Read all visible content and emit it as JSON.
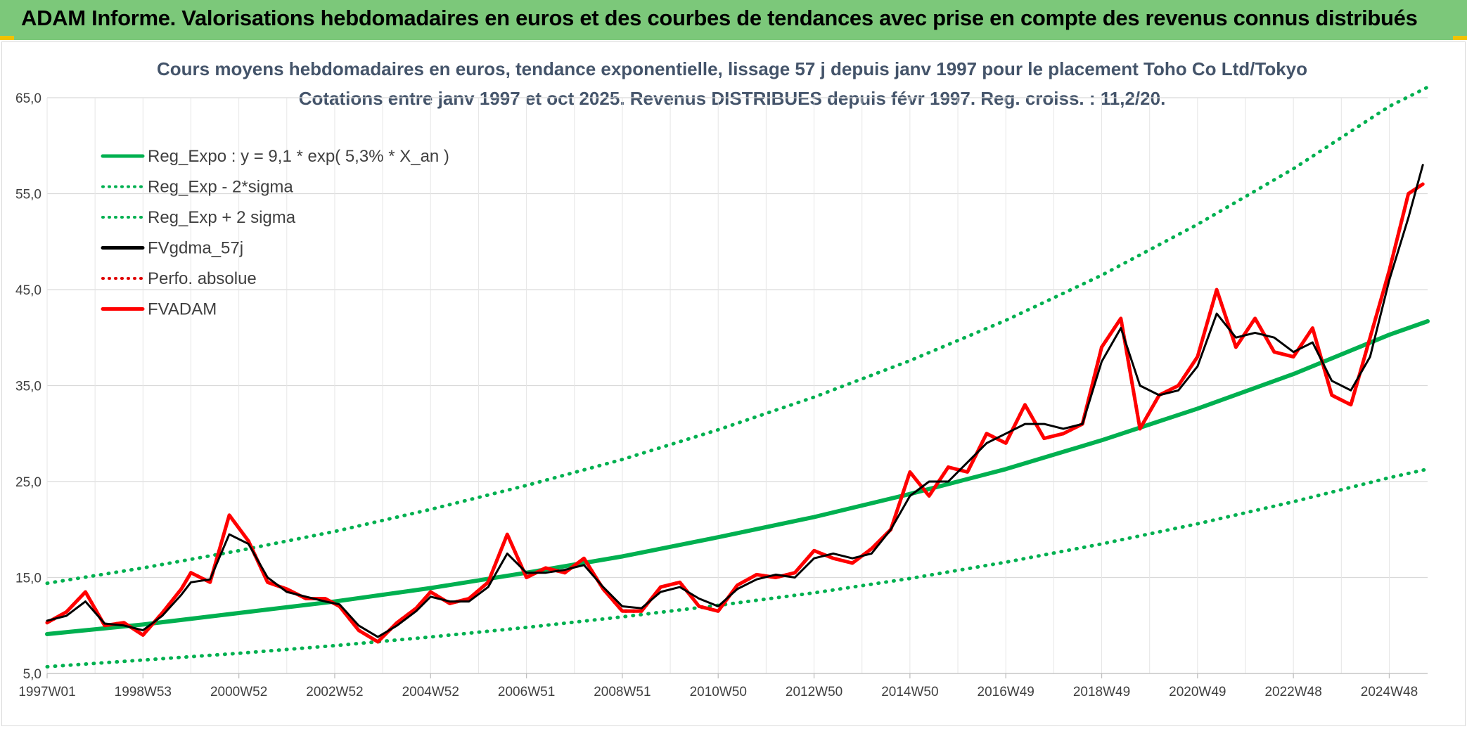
{
  "banner": {
    "title": "ADAM Informe. Valorisations hebdomadaires en euros et des courbes de tendances avec prise en compte des revenus connus distribués",
    "background": "#7cc87a"
  },
  "chart_data": {
    "type": "line",
    "title": "Cours moyens hebdomadaires en euros, tendance exponentielle, lissage 57 j depuis janv 1997 pour le placement Toho Co Ltd/Tokyo",
    "subtitle": "Cotations entre janv 1997 et oct 2025. Revenus DISTRIBUES depuis févr 1997. Reg. croiss. : 11,2/20.",
    "xlabel": "",
    "ylabel": "",
    "ylim": [
      5,
      65
    ],
    "xlim": [
      1997.0,
      2025.8
    ],
    "y_ticks": [
      "5,0",
      "15,0",
      "25,0",
      "35,0",
      "45,0",
      "55,0",
      "65,0"
    ],
    "x_ticks": [
      {
        "label": "1997W01",
        "year": 1997.0
      },
      {
        "label": "1998W53",
        "year": 1999.0
      },
      {
        "label": "2000W52",
        "year": 2001.0
      },
      {
        "label": "2002W52",
        "year": 2003.0
      },
      {
        "label": "2004W52",
        "year": 2005.0
      },
      {
        "label": "2006W51",
        "year": 2007.0
      },
      {
        "label": "2008W51",
        "year": 2009.0
      },
      {
        "label": "2010W50",
        "year": 2011.0
      },
      {
        "label": "2012W50",
        "year": 2013.0
      },
      {
        "label": "2014W50",
        "year": 2015.0
      },
      {
        "label": "2016W49",
        "year": 2017.0
      },
      {
        "label": "2018W49",
        "year": 2019.0
      },
      {
        "label": "2020W49",
        "year": 2021.0
      },
      {
        "label": "2022W48",
        "year": 2023.0
      },
      {
        "label": "2024W48",
        "year": 2025.0
      }
    ],
    "grid": true,
    "legend_position": "top-left",
    "series": [
      {
        "name": "Reg_Expo : y = 9,1 * exp( 5,3% *  X_an )",
        "color": "#00b050",
        "style": "solid",
        "x": [
          1997,
          1999,
          2001,
          2003,
          2005,
          2007,
          2009,
          2011,
          2013,
          2015,
          2017,
          2019,
          2021,
          2023,
          2025,
          2025.8
        ],
        "values": [
          9.1,
          10.1,
          11.3,
          12.5,
          13.9,
          15.5,
          17.2,
          19.2,
          21.3,
          23.7,
          26.3,
          29.3,
          32.6,
          36.2,
          40.3,
          41.7
        ]
      },
      {
        "name": "Reg_Exp - 2*sigma",
        "color": "#00b050",
        "style": "dotted",
        "x": [
          1997,
          1999,
          2001,
          2003,
          2005,
          2007,
          2009,
          2011,
          2013,
          2015,
          2017,
          2019,
          2021,
          2023,
          2025,
          2025.8
        ],
        "values": [
          5.7,
          6.4,
          7.1,
          7.9,
          8.8,
          9.8,
          10.9,
          12.1,
          13.4,
          14.9,
          16.6,
          18.5,
          20.6,
          22.9,
          25.4,
          26.3
        ]
      },
      {
        "name": "Reg_Exp + 2 sigma",
        "color": "#00b050",
        "style": "dotted",
        "x": [
          1997,
          1999,
          2001,
          2003,
          2005,
          2007,
          2009,
          2011,
          2013,
          2015,
          2017,
          2019,
          2021,
          2023,
          2025,
          2025.8
        ],
        "values": [
          14.4,
          16.0,
          17.8,
          19.8,
          22.1,
          24.6,
          27.3,
          30.4,
          33.8,
          37.6,
          41.8,
          46.5,
          51.8,
          57.6,
          64.1,
          66.1
        ]
      },
      {
        "name": "FVgdma_57j",
        "color": "#000000",
        "style": "solid",
        "x": [
          1997.0,
          1997.4,
          1997.8,
          1998.2,
          1998.6,
          1999.0,
          1999.4,
          1999.8,
          2000.0,
          2000.4,
          2000.8,
          2001.2,
          2001.6,
          2002.0,
          2002.4,
          2002.8,
          2003.1,
          2003.5,
          2003.9,
          2004.3,
          2004.7,
          2005.0,
          2005.4,
          2005.8,
          2006.2,
          2006.6,
          2007.0,
          2007.4,
          2007.8,
          2008.2,
          2008.6,
          2009.0,
          2009.4,
          2009.8,
          2010.2,
          2010.6,
          2011.0,
          2011.4,
          2011.8,
          2012.2,
          2012.6,
          2013.0,
          2013.4,
          2013.8,
          2014.2,
          2014.6,
          2015.0,
          2015.4,
          2015.8,
          2016.2,
          2016.6,
          2017.0,
          2017.4,
          2017.8,
          2018.2,
          2018.6,
          2019.0,
          2019.4,
          2019.8,
          2020.2,
          2020.6,
          2021.0,
          2021.4,
          2021.8,
          2022.2,
          2022.6,
          2023.0,
          2023.4,
          2023.8,
          2024.2,
          2024.6,
          2025.0,
          2025.4,
          2025.7
        ],
        "values": [
          10.5,
          11.0,
          12.5,
          10.2,
          10.0,
          9.5,
          11.0,
          13.2,
          14.5,
          14.8,
          19.5,
          18.5,
          15.0,
          13.5,
          13.0,
          12.5,
          12.2,
          10.0,
          8.8,
          10.0,
          11.5,
          13.0,
          12.5,
          12.5,
          14.0,
          17.5,
          15.5,
          15.5,
          15.8,
          16.3,
          14.0,
          12.0,
          11.8,
          13.5,
          14.0,
          12.8,
          12.0,
          13.8,
          14.8,
          15.3,
          15.0,
          17.0,
          17.5,
          17.0,
          17.5,
          20.0,
          23.5,
          25.0,
          25.0,
          27.0,
          29.0,
          30.0,
          31.0,
          31.0,
          30.5,
          31.0,
          37.5,
          41.0,
          35.0,
          34.0,
          34.5,
          37.0,
          42.5,
          40.0,
          40.5,
          40.0,
          38.5,
          39.5,
          35.5,
          34.5,
          38.0,
          46.0,
          52.5,
          58.0
        ]
      },
      {
        "name": "Perfo. absolue",
        "color": "#e00000",
        "style": "dotted",
        "x": [
          1997.0,
          1997.4,
          1997.8,
          1998.2,
          1998.6,
          1999.0,
          1999.4,
          1999.8,
          2000.0,
          2000.4,
          2000.8,
          2001.2,
          2001.6,
          2002.0,
          2002.4,
          2002.8,
          2003.1,
          2003.5,
          2003.9,
          2004.3,
          2004.7,
          2005.0,
          2005.4,
          2005.8,
          2006.2,
          2006.6,
          2007.0,
          2007.4,
          2007.8,
          2008.2,
          2008.6,
          2009.0,
          2009.4,
          2009.8,
          2010.2,
          2010.6,
          2011.0,
          2011.4,
          2011.8,
          2012.2,
          2012.6,
          2013.0,
          2013.4,
          2013.8,
          2014.2,
          2014.6,
          2015.0,
          2015.4,
          2015.8,
          2016.2,
          2016.6,
          2017.0,
          2017.4,
          2017.8,
          2018.2,
          2018.6,
          2019.0,
          2019.4,
          2019.8,
          2020.2,
          2020.6,
          2021.0,
          2021.4,
          2021.8,
          2022.2,
          2022.6,
          2023.0,
          2023.4,
          2023.8,
          2024.2,
          2024.6,
          2025.0,
          2025.4,
          2025.7
        ],
        "values": [
          10.3,
          11.4,
          13.5,
          10.0,
          10.3,
          9.0,
          11.3,
          13.8,
          15.5,
          14.5,
          21.5,
          18.8,
          14.5,
          13.8,
          12.8,
          12.8,
          12.0,
          9.5,
          8.3,
          10.3,
          11.8,
          13.5,
          12.3,
          12.8,
          14.5,
          19.5,
          15.0,
          16.0,
          15.5,
          17.0,
          13.8,
          11.5,
          11.5,
          14.0,
          14.5,
          12.0,
          11.5,
          14.2,
          15.3,
          15.0,
          15.5,
          17.8,
          17.0,
          16.5,
          18.0,
          20.0,
          26.0,
          23.5,
          26.5,
          26.0,
          30.0,
          29.0,
          33.0,
          29.5,
          30.0,
          31.0,
          39.0,
          42.0,
          30.5,
          34.0,
          35.0,
          38.0,
          45.0,
          39.0,
          42.0,
          38.5,
          38.0,
          41.0,
          34.0,
          33.0,
          40.0,
          47.0,
          55.0,
          56.0
        ]
      },
      {
        "name": "FVADAM",
        "color": "#ff0000",
        "style": "solid",
        "x": [
          1997.0,
          1997.4,
          1997.8,
          1998.2,
          1998.6,
          1999.0,
          1999.4,
          1999.8,
          2000.0,
          2000.4,
          2000.8,
          2001.2,
          2001.6,
          2002.0,
          2002.4,
          2002.8,
          2003.1,
          2003.5,
          2003.9,
          2004.3,
          2004.7,
          2005.0,
          2005.4,
          2005.8,
          2006.2,
          2006.6,
          2007.0,
          2007.4,
          2007.8,
          2008.2,
          2008.6,
          2009.0,
          2009.4,
          2009.8,
          2010.2,
          2010.6,
          2011.0,
          2011.4,
          2011.8,
          2012.2,
          2012.6,
          2013.0,
          2013.4,
          2013.8,
          2014.2,
          2014.6,
          2015.0,
          2015.4,
          2015.8,
          2016.2,
          2016.6,
          2017.0,
          2017.4,
          2017.8,
          2018.2,
          2018.6,
          2019.0,
          2019.4,
          2019.8,
          2020.2,
          2020.6,
          2021.0,
          2021.4,
          2021.8,
          2022.2,
          2022.6,
          2023.0,
          2023.4,
          2023.8,
          2024.2,
          2024.6,
          2025.0,
          2025.4,
          2025.7
        ],
        "values": [
          10.3,
          11.4,
          13.5,
          10.0,
          10.3,
          9.0,
          11.3,
          13.8,
          15.5,
          14.5,
          21.5,
          18.8,
          14.5,
          13.8,
          12.8,
          12.8,
          12.0,
          9.5,
          8.3,
          10.3,
          11.8,
          13.5,
          12.3,
          12.8,
          14.5,
          19.5,
          15.0,
          16.0,
          15.5,
          17.0,
          13.8,
          11.5,
          11.5,
          14.0,
          14.5,
          12.0,
          11.5,
          14.2,
          15.3,
          15.0,
          15.5,
          17.8,
          17.0,
          16.5,
          18.0,
          20.0,
          26.0,
          23.5,
          26.5,
          26.0,
          30.0,
          29.0,
          33.0,
          29.5,
          30.0,
          31.0,
          39.0,
          42.0,
          30.5,
          34.0,
          35.0,
          38.0,
          45.0,
          39.0,
          42.0,
          38.5,
          38.0,
          41.0,
          34.0,
          33.0,
          40.0,
          47.0,
          55.0,
          56.0
        ]
      }
    ]
  }
}
